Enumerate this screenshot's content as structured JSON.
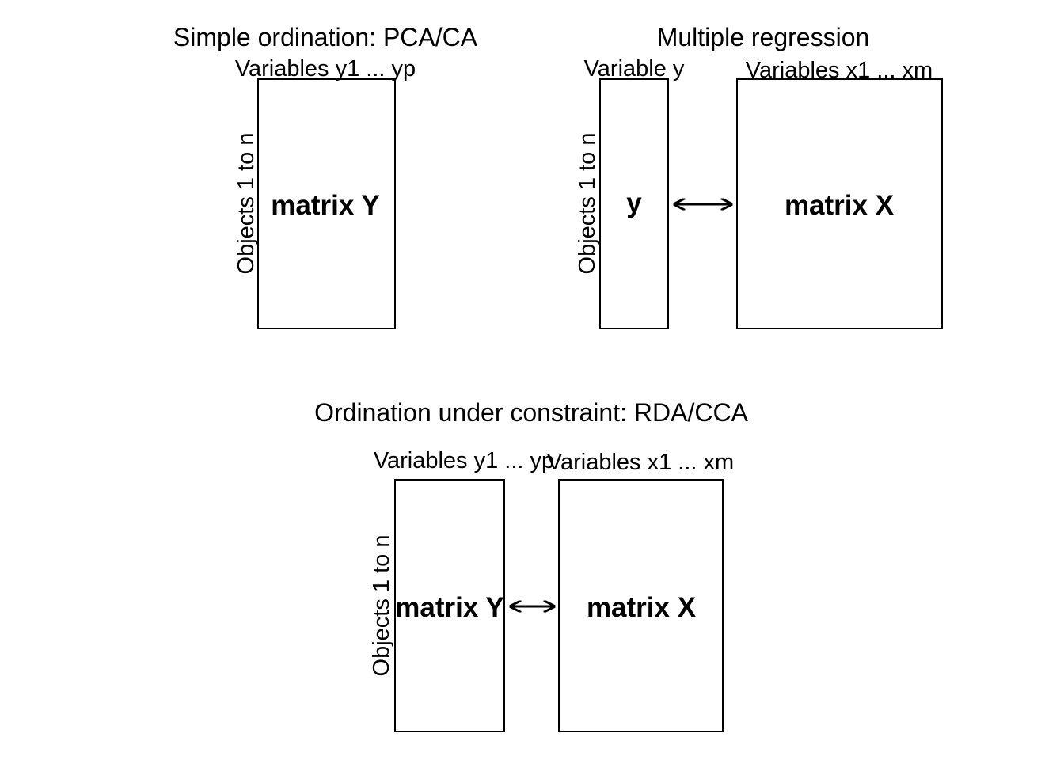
{
  "panel_pca": {
    "title": "Simple ordination: PCA/CA",
    "variables_label": "Variables y1 ... yp",
    "objects_label": "Objects 1 to n",
    "matrix_label": "matrix Y"
  },
  "panel_regression": {
    "title": "Multiple regression",
    "response_label": "Variable y",
    "explanatory_label": "Variables x1 ... xm",
    "objects_label": "Objects 1 to n",
    "response_matrix_label": "y",
    "explanatory_matrix_label": "matrix X"
  },
  "panel_rda": {
    "title": "Ordination under constraint: RDA/CCA",
    "response_label": "Variables y1 ... yp",
    "explanatory_label": "Variables x1 ... xm",
    "objects_label": "Objects 1 to n",
    "response_matrix_label": "matrix Y",
    "explanatory_matrix_label": "matrix X"
  }
}
